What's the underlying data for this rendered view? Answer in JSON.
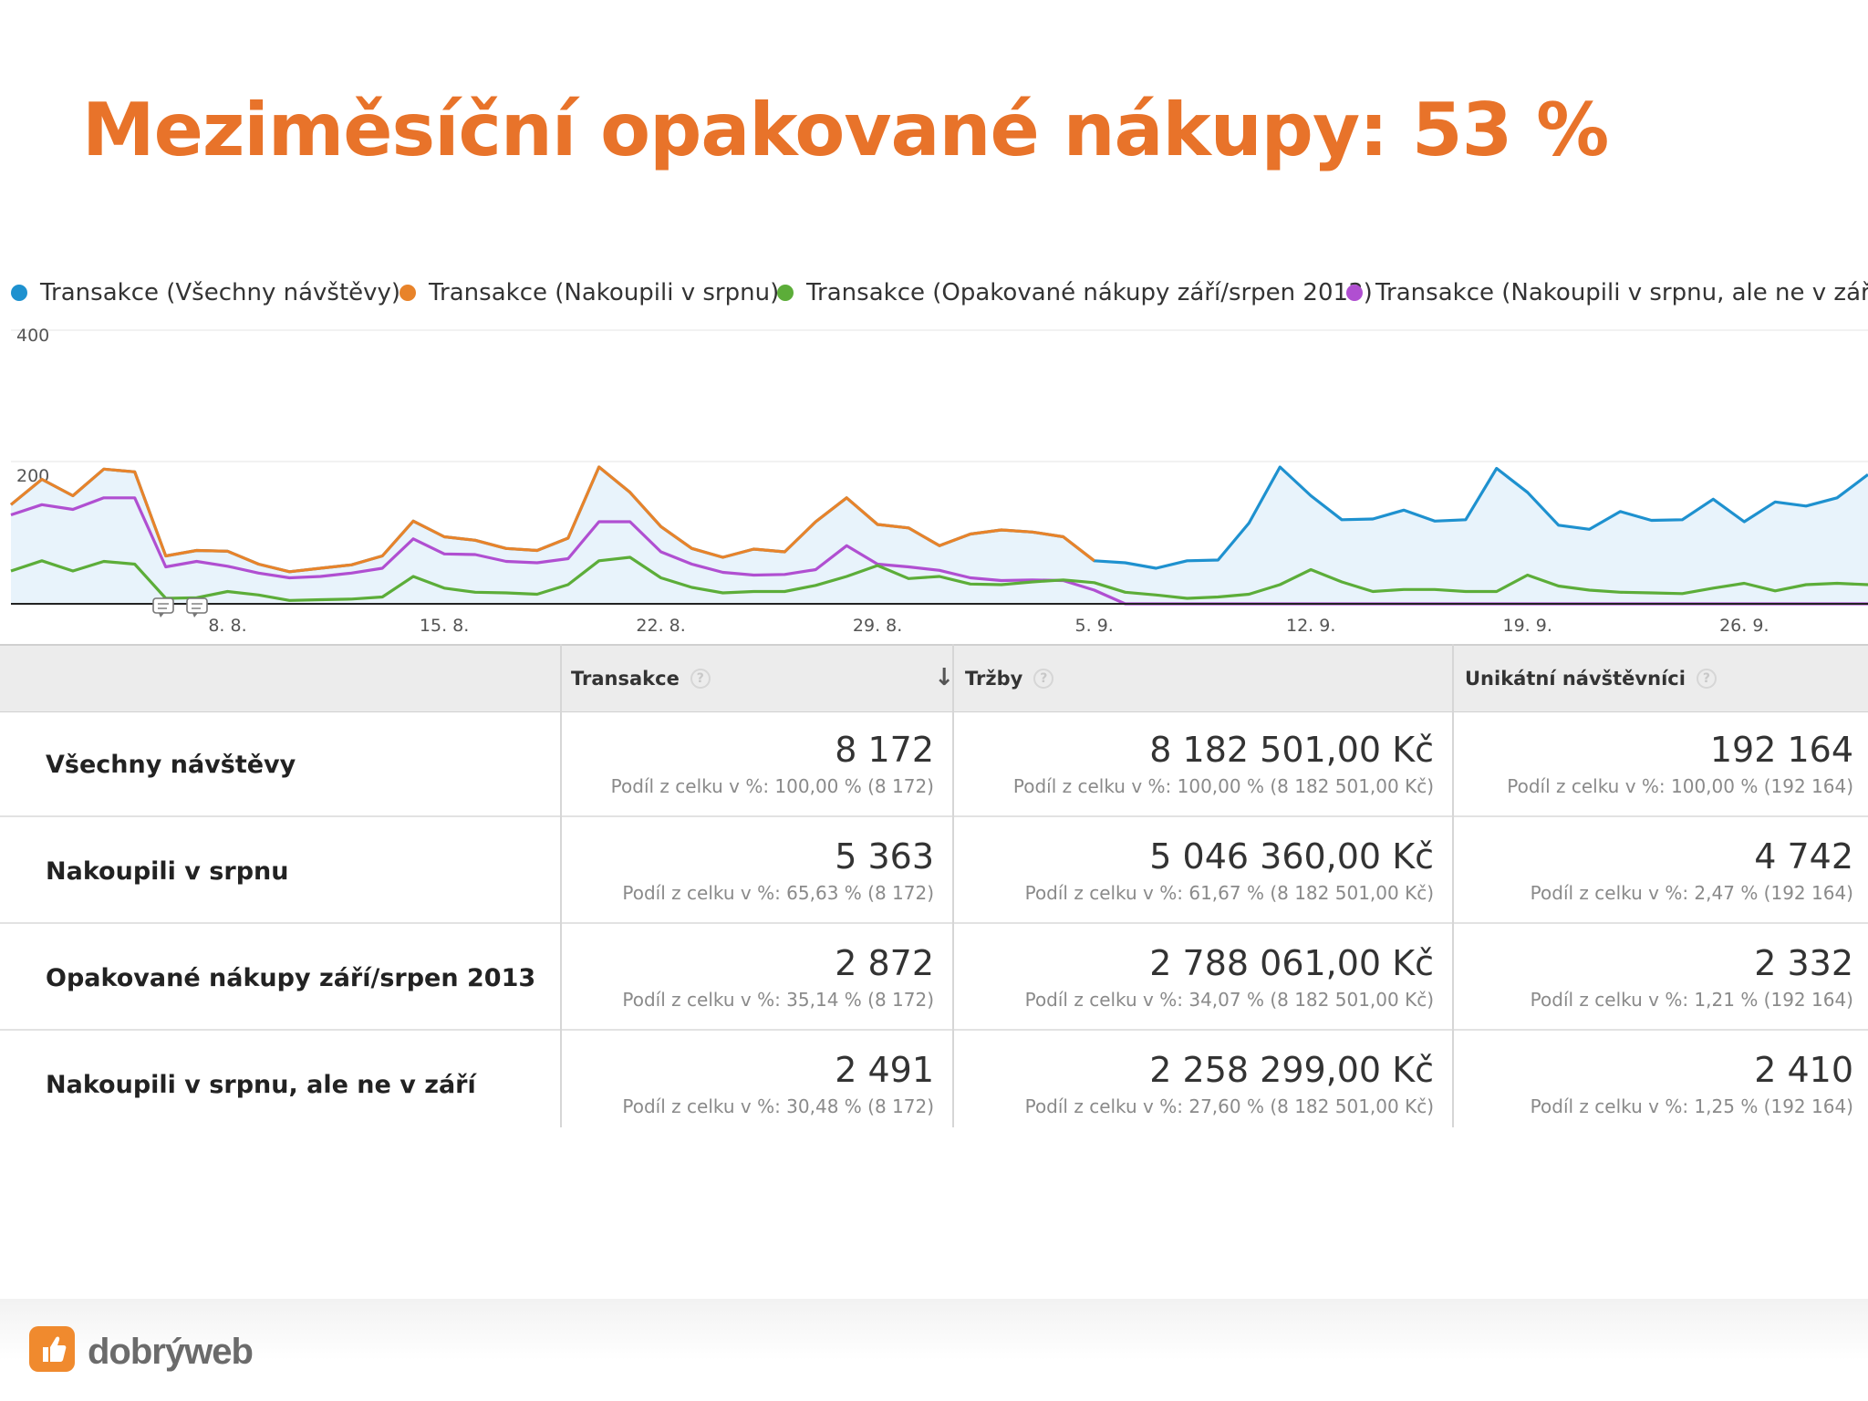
{
  "title": "Meziměsíční opakované nákupy: 53 %",
  "colors": {
    "title": "#e8732a",
    "blue": "#1e91cf",
    "orange": "#e8832a",
    "green": "#5cad39",
    "purple": "#b04fd1",
    "area": "#e8f3fb"
  },
  "chart_data": {
    "type": "line",
    "ylim": [
      0,
      400
    ],
    "yticks": [
      "200",
      "400"
    ],
    "xticks": [
      "8. 8.",
      "15. 8.",
      "22. 8.",
      "29. 8.",
      "5. 9.",
      "12. 9.",
      "19. 9.",
      "26. 9."
    ],
    "xtick_day_index": [
      7,
      14,
      21,
      28,
      35,
      42,
      49,
      56
    ],
    "x_start": "1. 8.",
    "legend_position": "top",
    "series": [
      {
        "name": "Transakce (Všechny návštěvy)",
        "color": "#1e91cf",
        "values": [
          145,
          182,
          158,
          197,
          193,
          70,
          78,
          77,
          58,
          47,
          52,
          57,
          70,
          121,
          98,
          93,
          81,
          78,
          96,
          200,
          163,
          113,
          81,
          68,
          80,
          76,
          120,
          155,
          116,
          111,
          85,
          102,
          108,
          105,
          98,
          63,
          60,
          52,
          63,
          64,
          118,
          200,
          158,
          123,
          124,
          137,
          121,
          123,
          198,
          163,
          115,
          109,
          135,
          122,
          123,
          153,
          120,
          149,
          143,
          155,
          189
        ]
      },
      {
        "name": "Transakce (Nakoupili v srpnu)",
        "color": "#e8832a",
        "values": [
          145,
          182,
          158,
          197,
          193,
          70,
          78,
          77,
          58,
          47,
          52,
          57,
          70,
          121,
          98,
          93,
          81,
          78,
          96,
          200,
          163,
          113,
          81,
          68,
          80,
          76,
          120,
          155,
          116,
          111,
          85,
          102,
          108,
          105,
          98,
          63
        ]
      },
      {
        "name": "Transakce (Opakované nákupy září/srpen 2013)",
        "color": "#5cad39",
        "values": [
          48,
          63,
          48,
          62,
          58,
          8,
          9,
          18,
          13,
          5,
          6,
          7,
          10,
          40,
          23,
          17,
          16,
          14,
          28,
          63,
          68,
          38,
          24,
          16,
          18,
          18,
          27,
          40,
          56,
          37,
          40,
          29,
          28,
          32,
          35,
          31,
          17,
          13,
          8,
          10,
          14,
          28,
          50,
          32,
          18,
          21,
          21,
          18,
          18,
          42,
          26,
          20,
          17,
          16,
          15,
          23,
          30,
          19,
          28,
          30,
          28,
          38
        ]
      },
      {
        "name": "Transakce (Nakoupili v srpnu, ale ne v září)",
        "color": "#b04fd1",
        "values": [
          130,
          145,
          138,
          155,
          155,
          54,
          62,
          55,
          45,
          38,
          40,
          45,
          52,
          95,
          73,
          72,
          62,
          60,
          66,
          120,
          120,
          76,
          58,
          46,
          42,
          43,
          50,
          85,
          58,
          54,
          49,
          38,
          34,
          35,
          34,
          20,
          0,
          0,
          0,
          0,
          0,
          0,
          0,
          0,
          0,
          0,
          0,
          0,
          0,
          0,
          0,
          0,
          0,
          0,
          0,
          0,
          0,
          0,
          0,
          0,
          0,
          0
        ]
      }
    ]
  },
  "table": {
    "headers": {
      "transactions": "Transakce",
      "revenue": "Tržby",
      "visitors": "Unikátní návštěvníci"
    },
    "rows": [
      {
        "label": "Všechny návštěvy",
        "transactions": "8 172",
        "transactions_share": "Podíl z celku v %: 100,00 % (8 172)",
        "revenue": "8 182 501,00 Kč",
        "revenue_share": "Podíl z celku v %: 100,00 % (8 182 501,00 Kč)",
        "visitors": "192 164",
        "visitors_share": "Podíl z celku v %: 100,00 % (192 164)"
      },
      {
        "label": "Nakoupili v srpnu",
        "transactions": "5 363",
        "transactions_share": "Podíl z celku v %: 65,63 % (8 172)",
        "revenue": "5 046 360,00 Kč",
        "revenue_share": "Podíl z celku v %: 61,67 % (8 182 501,00 Kč)",
        "visitors": "4 742",
        "visitors_share": "Podíl z celku v %: 2,47 % (192 164)"
      },
      {
        "label": "Opakované nákupy září/srpen 2013",
        "transactions": "2 872",
        "transactions_share": "Podíl z celku v %: 35,14 % (8 172)",
        "revenue": "2 788 061,00 Kč",
        "revenue_share": "Podíl z celku v %: 34,07 % (8 182 501,00 Kč)",
        "visitors": "2 332",
        "visitors_share": "Podíl z celku v %: 1,21 % (192 164)"
      },
      {
        "label": "Nakoupili v srpnu, ale ne v září",
        "transactions": "2 491",
        "transactions_share": "Podíl z celku v %: 30,48 % (8 172)",
        "revenue": "2 258 299,00 Kč",
        "revenue_share": "Podíl z celku v %: 27,60 % (8 182 501,00 Kč)",
        "visitors": "2 410",
        "visitors_share": "Podíl z celku v %: 1,25 % (192 164)"
      }
    ]
  },
  "footer": {
    "logo_text": "dobrýweb",
    "logo_icon": "thumbs-up-icon",
    "annotation_icon": "annotation-icon"
  }
}
